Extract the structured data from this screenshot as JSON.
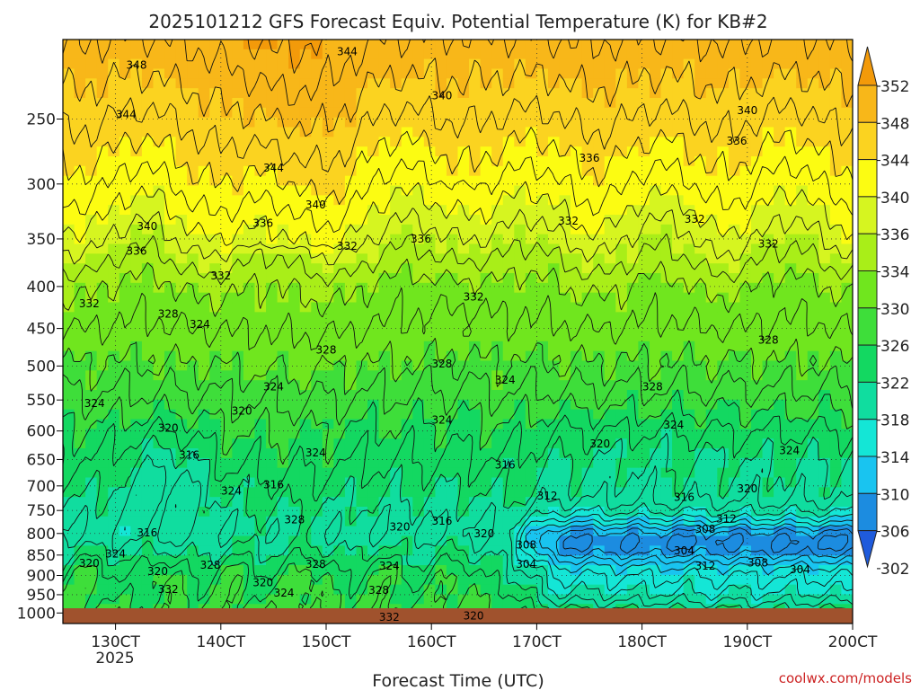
{
  "chart_data": {
    "type": "heatmap",
    "title": "2025101212 GFS Forecast Equiv. Potential Temperature (K) for KB#2",
    "xlabel": "Forecast Time (UTC)",
    "x_ticks": [
      "130CT",
      "140CT",
      "150CT",
      "160CT",
      "170CT",
      "180CT",
      "190CT",
      "200CT"
    ],
    "x_tick_values": [
      13,
      14,
      15,
      16,
      17,
      18,
      19,
      20
    ],
    "x_range": [
      12.5,
      20.0
    ],
    "x_year_label": "2025",
    "y_ticks": [
      "250",
      "300",
      "350",
      "400",
      "450",
      "500",
      "550",
      "600",
      "650",
      "700",
      "750",
      "800",
      "850",
      "900",
      "950",
      "1000"
    ],
    "y_tick_values": [
      250,
      300,
      350,
      400,
      450,
      500,
      550,
      600,
      650,
      700,
      750,
      800,
      850,
      900,
      950,
      1000
    ],
    "y_range_hpa": [
      200,
      1030
    ],
    "y_scale": "log",
    "colorbar": {
      "labels": [
        "352",
        "348",
        "344",
        "340",
        "336",
        "334",
        "330",
        "326",
        "322",
        "318",
        "314",
        "310",
        "306",
        "302"
      ],
      "levels": [
        350,
        346,
        342,
        338,
        335,
        332,
        328,
        324,
        320,
        316,
        312,
        308,
        304
      ],
      "colors": [
        "#f39a0a",
        "#f8b719",
        "#fbd320",
        "#fcfc12",
        "#d6f520",
        "#a9ee18",
        "#70e61e",
        "#3ede3a",
        "#13d861",
        "#10dd9f",
        "#14e6d6",
        "#19c4f0",
        "#1c8ce0",
        "#1f5bdc"
      ]
    },
    "contour_labels": [
      {
        "text": "348",
        "t": 13.2,
        "p": 215
      },
      {
        "text": "344",
        "t": 15.2,
        "p": 207
      },
      {
        "text": "340",
        "t": 16.1,
        "p": 234
      },
      {
        "text": "340",
        "t": 19.0,
        "p": 244
      },
      {
        "text": "344",
        "t": 13.1,
        "p": 247
      },
      {
        "text": "336",
        "t": 17.5,
        "p": 279
      },
      {
        "text": "336",
        "t": 18.9,
        "p": 266
      },
      {
        "text": "344",
        "t": 14.5,
        "p": 287
      },
      {
        "text": "340",
        "t": 14.9,
        "p": 318
      },
      {
        "text": "332",
        "t": 17.3,
        "p": 333
      },
      {
        "text": "332",
        "t": 18.5,
        "p": 331
      },
      {
        "text": "340",
        "t": 13.3,
        "p": 338
      },
      {
        "text": "336",
        "t": 14.4,
        "p": 335
      },
      {
        "text": "336",
        "t": 15.9,
        "p": 350
      },
      {
        "text": "332",
        "t": 19.2,
        "p": 355
      },
      {
        "text": "336",
        "t": 13.2,
        "p": 362
      },
      {
        "text": "332",
        "t": 15.2,
        "p": 357
      },
      {
        "text": "332",
        "t": 14.0,
        "p": 388
      },
      {
        "text": "332",
        "t": 16.4,
        "p": 412
      },
      {
        "text": "332",
        "t": 12.75,
        "p": 420
      },
      {
        "text": "328",
        "t": 13.5,
        "p": 432
      },
      {
        "text": "324",
        "t": 13.8,
        "p": 445
      },
      {
        "text": "328",
        "t": 19.2,
        "p": 465
      },
      {
        "text": "328",
        "t": 15.0,
        "p": 478
      },
      {
        "text": "328",
        "t": 16.1,
        "p": 497
      },
      {
        "text": "324",
        "t": 16.7,
        "p": 520
      },
      {
        "text": "328",
        "t": 18.1,
        "p": 530
      },
      {
        "text": "324",
        "t": 14.5,
        "p": 530
      },
      {
        "text": "324",
        "t": 12.8,
        "p": 555
      },
      {
        "text": "320",
        "t": 14.2,
        "p": 567
      },
      {
        "text": "324",
        "t": 16.1,
        "p": 582
      },
      {
        "text": "324",
        "t": 18.3,
        "p": 590
      },
      {
        "text": "320",
        "t": 13.5,
        "p": 595
      },
      {
        "text": "320",
        "t": 17.6,
        "p": 622
      },
      {
        "text": "324",
        "t": 19.4,
        "p": 634
      },
      {
        "text": "324",
        "t": 14.9,
        "p": 638
      },
      {
        "text": "316",
        "t": 13.7,
        "p": 642
      },
      {
        "text": "316",
        "t": 16.7,
        "p": 660
      },
      {
        "text": "316",
        "t": 14.5,
        "p": 698
      },
      {
        "text": "324",
        "t": 14.1,
        "p": 710
      },
      {
        "text": "320",
        "t": 19.0,
        "p": 706
      },
      {
        "text": "312",
        "t": 17.1,
        "p": 720
      },
      {
        "text": "316",
        "t": 18.4,
        "p": 723
      },
      {
        "text": "328",
        "t": 14.7,
        "p": 770
      },
      {
        "text": "312",
        "t": 18.8,
        "p": 768
      },
      {
        "text": "316",
        "t": 16.1,
        "p": 773
      },
      {
        "text": "320",
        "t": 15.7,
        "p": 785
      },
      {
        "text": "308",
        "t": 18.6,
        "p": 790
      },
      {
        "text": "320",
        "t": 16.5,
        "p": 800
      },
      {
        "text": "316",
        "t": 13.3,
        "p": 798
      },
      {
        "text": "308",
        "t": 16.9,
        "p": 826
      },
      {
        "text": "304",
        "t": 18.4,
        "p": 840
      },
      {
        "text": "324",
        "t": 13.0,
        "p": 847
      },
      {
        "text": "304",
        "t": 16.9,
        "p": 872
      },
      {
        "text": "308",
        "t": 19.1,
        "p": 869
      },
      {
        "text": "312",
        "t": 18.6,
        "p": 877
      },
      {
        "text": "304",
        "t": 19.5,
        "p": 885
      },
      {
        "text": "320",
        "t": 12.75,
        "p": 870
      },
      {
        "text": "328",
        "t": 13.9,
        "p": 874
      },
      {
        "text": "324",
        "t": 15.6,
        "p": 877
      },
      {
        "text": "328",
        "t": 14.9,
        "p": 872
      },
      {
        "text": "320",
        "t": 13.4,
        "p": 890
      },
      {
        "text": "320",
        "t": 14.4,
        "p": 918
      },
      {
        "text": "332",
        "t": 13.5,
        "p": 936
      },
      {
        "text": "324",
        "t": 14.6,
        "p": 945
      },
      {
        "text": "328",
        "t": 15.5,
        "p": 938
      },
      {
        "text": "332",
        "t": 15.6,
        "p": 1012
      },
      {
        "text": "320",
        "t": 16.4,
        "p": 1008
      }
    ],
    "credit": "coolwx.com/models"
  }
}
